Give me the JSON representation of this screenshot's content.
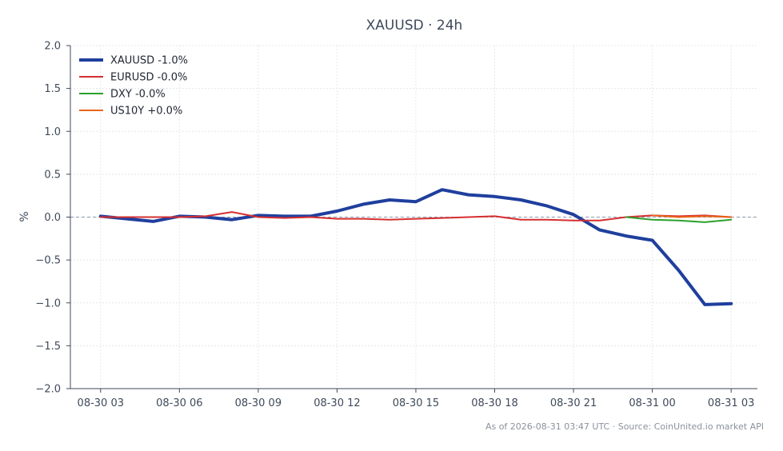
{
  "chart_data": {
    "type": "line",
    "title": "XAUUSD · 24h",
    "ylabel": "%",
    "xlabel": "",
    "ylim": [
      -2.0,
      2.0
    ],
    "yticks": [
      2.0,
      1.5,
      1.0,
      0.5,
      0.0,
      -0.5,
      -1.0,
      -1.5,
      -2.0
    ],
    "ytick_labels": [
      "2.0",
      "1.5",
      "1.0",
      "0.5",
      "0.0",
      "−0.5",
      "−1.0",
      "−1.5",
      "−2.0"
    ],
    "xlim": [
      -1.15,
      25
    ],
    "xticks": [
      0,
      3,
      6,
      9,
      12,
      15,
      18,
      21,
      24
    ],
    "xtick_labels": [
      "08-30 03",
      "08-30 06",
      "08-30 09",
      "08-30 12",
      "08-30 15",
      "08-30 18",
      "08-30 21",
      "08-31 00",
      "08-31 03"
    ],
    "x_unit": "hours since 08-30 03:00",
    "grid": true,
    "zero_reference_line": true,
    "legend_position": "top-left",
    "series": [
      {
        "name": "XAUUSD -1.0%",
        "color": "#1f3f9e",
        "width": 4,
        "x": [
          0,
          1,
          2,
          3,
          4,
          5,
          6,
          7,
          8,
          9,
          10,
          11,
          12,
          13,
          14,
          15,
          16,
          17,
          18,
          19,
          20,
          21,
          22,
          23,
          24
        ],
        "y": [
          0.01,
          -0.02,
          -0.05,
          0.01,
          0.0,
          -0.03,
          0.02,
          0.01,
          0.01,
          0.07,
          0.15,
          0.2,
          0.18,
          0.32,
          0.26,
          0.24,
          0.2,
          0.13,
          0.03,
          -0.15,
          -0.22,
          -0.27,
          -0.62,
          -1.02,
          -1.01
        ]
      },
      {
        "name": "EURUSD -0.0%",
        "color": "#d62f2f",
        "width": 2,
        "x": [
          0,
          1,
          2,
          3,
          4,
          5,
          6,
          7,
          8,
          9,
          10,
          11,
          12,
          13,
          14,
          15,
          16,
          17,
          18,
          19,
          20,
          21,
          22,
          23,
          24
        ],
        "y": [
          0.0,
          0.0,
          0.0,
          0.0,
          0.01,
          0.06,
          0.0,
          -0.01,
          0.0,
          -0.02,
          -0.02,
          -0.03,
          -0.02,
          -0.01,
          0.0,
          0.01,
          -0.03,
          -0.03,
          -0.04,
          -0.04,
          0.0,
          0.02,
          0.01,
          0.02,
          0.0
        ]
      },
      {
        "name": "DXY -0.0%",
        "color": "#2ca02c",
        "width": 2,
        "x": [
          20,
          21,
          22,
          23,
          24
        ],
        "y": [
          0.0,
          -0.03,
          -0.04,
          -0.06,
          -0.03
        ]
      },
      {
        "name": "US10Y +0.0%",
        "color": "#e8641b",
        "width": 2,
        "x": [
          21,
          22,
          23,
          24
        ],
        "y": [
          0.02,
          0.0,
          0.01,
          0.0
        ]
      }
    ],
    "footer": "As of 2026-08-31 03:47 UTC · Source: CoinUnited.io market API"
  }
}
